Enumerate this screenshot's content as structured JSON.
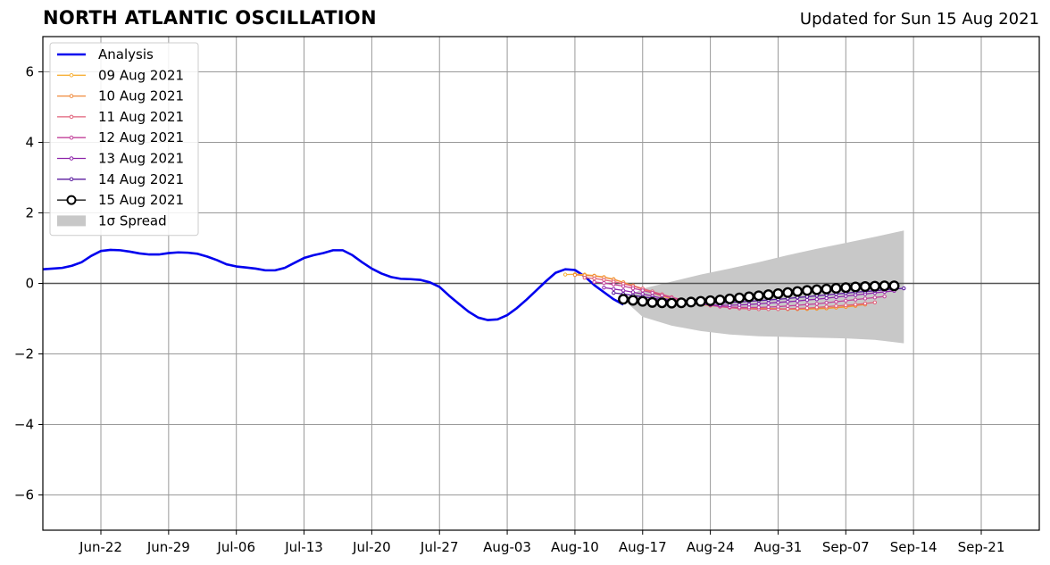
{
  "header": {
    "title": "NORTH ATLANTIC OSCILLATION",
    "updated": "Updated for Sun 15 Aug 2021"
  },
  "colors": {
    "analysis": "#0000ee",
    "spread": "#c8c8c8",
    "grid": "#999999",
    "zero_line": "#555555",
    "forecast": [
      "#f7b13a",
      "#f08a3c",
      "#e0607a",
      "#c2419a",
      "#8e24aa",
      "#5a1a9e",
      "#000000"
    ]
  },
  "chart_data": {
    "type": "line",
    "title": "NORTH ATLANTIC OSCILLATION",
    "ylim": [
      -7,
      7
    ],
    "yticks": [
      -6,
      -4,
      -2,
      0,
      2,
      4,
      6
    ],
    "ytick_labels": [
      "−6",
      "−4",
      "−2",
      "0",
      "2",
      "4",
      "6"
    ],
    "xlim": [
      "2021-06-16",
      "2021-09-27"
    ],
    "xticks": [
      "2021-06-22",
      "2021-06-29",
      "2021-07-06",
      "2021-07-13",
      "2021-07-20",
      "2021-07-27",
      "2021-08-03",
      "2021-08-10",
      "2021-08-17",
      "2021-08-24",
      "2021-08-31",
      "2021-09-07",
      "2021-09-14",
      "2021-09-21"
    ],
    "xtick_labels": [
      "Jun-22",
      "Jun-29",
      "Jul-06",
      "Jul-13",
      "Jul-20",
      "Jul-27",
      "Aug-03",
      "Aug-10",
      "Aug-17",
      "Aug-24",
      "Aug-31",
      "Sep-07",
      "Sep-14",
      "Sep-21"
    ],
    "grid": true,
    "legend_position": "top-left",
    "analysis": {
      "name": "Analysis",
      "x": [
        "2021-06-16",
        "2021-06-17",
        "2021-06-18",
        "2021-06-19",
        "2021-06-20",
        "2021-06-21",
        "2021-06-22",
        "2021-06-23",
        "2021-06-24",
        "2021-06-25",
        "2021-06-26",
        "2021-06-27",
        "2021-06-28",
        "2021-06-29",
        "2021-06-30",
        "2021-07-01",
        "2021-07-02",
        "2021-07-03",
        "2021-07-04",
        "2021-07-05",
        "2021-07-06",
        "2021-07-07",
        "2021-07-08",
        "2021-07-09",
        "2021-07-10",
        "2021-07-11",
        "2021-07-12",
        "2021-07-13",
        "2021-07-14",
        "2021-07-15",
        "2021-07-16",
        "2021-07-17",
        "2021-07-18",
        "2021-07-19",
        "2021-07-20",
        "2021-07-21",
        "2021-07-22",
        "2021-07-23",
        "2021-07-24",
        "2021-07-25",
        "2021-07-26",
        "2021-07-27",
        "2021-07-28",
        "2021-07-29",
        "2021-07-30",
        "2021-07-31",
        "2021-08-01",
        "2021-08-02",
        "2021-08-03",
        "2021-08-04",
        "2021-08-05",
        "2021-08-06",
        "2021-08-07",
        "2021-08-08",
        "2021-08-09",
        "2021-08-10",
        "2021-08-11",
        "2021-08-12",
        "2021-08-13",
        "2021-08-14",
        "2021-08-15"
      ],
      "y": [
        0.4,
        0.42,
        0.44,
        0.5,
        0.6,
        0.78,
        0.92,
        0.95,
        0.94,
        0.9,
        0.85,
        0.82,
        0.82,
        0.86,
        0.88,
        0.87,
        0.84,
        0.76,
        0.66,
        0.54,
        0.48,
        0.45,
        0.42,
        0.37,
        0.37,
        0.44,
        0.58,
        0.72,
        0.8,
        0.86,
        0.94,
        0.94,
        0.8,
        0.6,
        0.42,
        0.28,
        0.18,
        0.13,
        0.12,
        0.1,
        0.03,
        -0.1,
        -0.35,
        -0.58,
        -0.8,
        -0.97,
        -1.04,
        -1.02,
        -0.9,
        -0.7,
        -0.46,
        -0.2,
        0.06,
        0.3,
        0.4,
        0.38,
        0.2,
        -0.05,
        -0.25,
        -0.45,
        -0.6
      ]
    },
    "spread": {
      "name": "1σ Spread",
      "x": [
        "2021-08-15",
        "2021-08-17",
        "2021-08-20",
        "2021-08-23",
        "2021-08-26",
        "2021-08-29",
        "2021-09-01",
        "2021-09-04",
        "2021-09-07",
        "2021-09-10",
        "2021-09-13"
      ],
      "upper": [
        -0.45,
        -0.15,
        0.05,
        0.25,
        0.42,
        0.6,
        0.8,
        0.98,
        1.15,
        1.32,
        1.5
      ],
      "lower": [
        -0.45,
        -0.95,
        -1.2,
        -1.35,
        -1.45,
        -1.5,
        -1.52,
        -1.54,
        -1.56,
        -1.6,
        -1.7
      ]
    },
    "series": [
      {
        "name": "09 Aug 2021",
        "start": "2021-08-09",
        "y": [
          0.25,
          0.26,
          0.25,
          0.22,
          0.18,
          0.12,
          0.03,
          -0.07,
          -0.17,
          -0.27,
          -0.36,
          -0.44,
          -0.51,
          -0.56,
          -0.6,
          -0.63,
          -0.65,
          -0.67,
          -0.68,
          -0.69,
          -0.7,
          -0.71,
          -0.72,
          -0.73,
          -0.73,
          -0.73,
          -0.72,
          -0.71,
          -0.69,
          -0.67,
          -0.64
        ]
      },
      {
        "name": "10 Aug 2021",
        "start": "2021-08-10",
        "y": [
          0.24,
          0.23,
          0.21,
          0.17,
          0.11,
          0.03,
          -0.06,
          -0.15,
          -0.24,
          -0.32,
          -0.4,
          -0.47,
          -0.53,
          -0.58,
          -0.62,
          -0.65,
          -0.67,
          -0.69,
          -0.7,
          -0.71,
          -0.72,
          -0.72,
          -0.73,
          -0.73,
          -0.72,
          -0.71,
          -0.7,
          -0.68,
          -0.66,
          -0.63,
          -0.6
        ]
      },
      {
        "name": "11 Aug 2021",
        "start": "2021-08-11",
        "y": [
          0.16,
          0.14,
          0.1,
          0.05,
          -0.01,
          -0.08,
          -0.15,
          -0.23,
          -0.31,
          -0.39,
          -0.46,
          -0.53,
          -0.58,
          -0.62,
          -0.66,
          -0.69,
          -0.71,
          -0.72,
          -0.73,
          -0.73,
          -0.73,
          -0.72,
          -0.71,
          -0.7,
          -0.68,
          -0.66,
          -0.64,
          -0.62,
          -0.6,
          -0.57,
          -0.54
        ]
      },
      {
        "name": "12 Aug 2021",
        "start": "2021-08-12",
        "y": [
          0.04,
          0.01,
          -0.03,
          -0.08,
          -0.14,
          -0.2,
          -0.27,
          -0.34,
          -0.41,
          -0.47,
          -0.53,
          -0.58,
          -0.62,
          -0.65,
          -0.67,
          -0.68,
          -0.68,
          -0.68,
          -0.67,
          -0.66,
          -0.64,
          -0.62,
          -0.6,
          -0.58,
          -0.55,
          -0.52,
          -0.49,
          -0.46,
          -0.43,
          -0.4,
          -0.37
        ]
      },
      {
        "name": "13 Aug 2021",
        "start": "2021-08-13",
        "y": [
          -0.12,
          -0.16,
          -0.2,
          -0.25,
          -0.3,
          -0.36,
          -0.42,
          -0.47,
          -0.52,
          -0.56,
          -0.59,
          -0.61,
          -0.62,
          -0.62,
          -0.61,
          -0.6,
          -0.58,
          -0.56,
          -0.54,
          -0.52,
          -0.5,
          -0.47,
          -0.45,
          -0.42,
          -0.39,
          -0.36,
          -0.33,
          -0.3,
          -0.27,
          -0.24,
          -0.21
        ]
      },
      {
        "name": "14 Aug 2021",
        "start": "2021-08-14",
        "y": [
          -0.27,
          -0.3,
          -0.34,
          -0.38,
          -0.42,
          -0.46,
          -0.49,
          -0.52,
          -0.54,
          -0.55,
          -0.55,
          -0.55,
          -0.54,
          -0.53,
          -0.51,
          -0.49,
          -0.47,
          -0.45,
          -0.43,
          -0.4,
          -0.38,
          -0.35,
          -0.33,
          -0.3,
          -0.28,
          -0.25,
          -0.23,
          -0.21,
          -0.18,
          -0.16,
          -0.14
        ]
      },
      {
        "name": "15 Aug 2021",
        "start": "2021-08-15",
        "y": [
          -0.45,
          -0.48,
          -0.51,
          -0.54,
          -0.55,
          -0.56,
          -0.55,
          -0.53,
          -0.51,
          -0.49,
          -0.47,
          -0.44,
          -0.41,
          -0.38,
          -0.35,
          -0.32,
          -0.29,
          -0.26,
          -0.23,
          -0.2,
          -0.18,
          -0.16,
          -0.14,
          -0.12,
          -0.1,
          -0.09,
          -0.08,
          -0.07,
          -0.07
        ]
      }
    ]
  }
}
